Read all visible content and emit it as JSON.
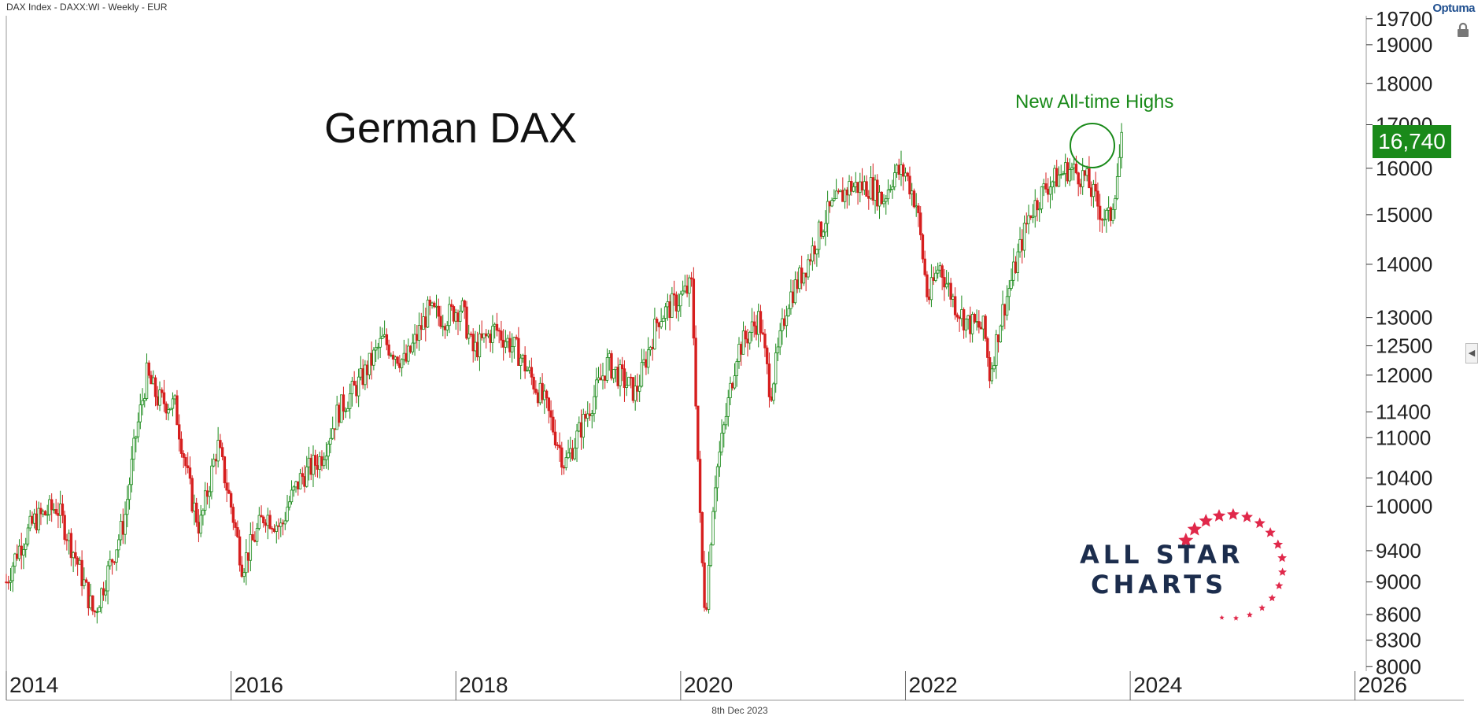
{
  "header": {
    "title": "DAX Index - DAXX:WI - Weekly - EUR",
    "brand": "Optuma"
  },
  "footer": {
    "date": "8th Dec 2023"
  },
  "colors": {
    "up": "#1a8a1a",
    "down": "#d61e1e",
    "annotation": "#1a8a1a",
    "logo_star": "#e0284a",
    "logo_text": "#1c2d4d"
  },
  "icons": {
    "lock": "lock-icon",
    "collapse": "chevron-left-icon"
  },
  "chart_data": {
    "type": "candlestick",
    "title": "German DAX",
    "xlabel": "",
    "ylabel": "",
    "y_scale": "log",
    "ylim": [
      7950,
      20000
    ],
    "xlim": [
      2014.0,
      2026.1
    ],
    "x_ticks": [
      "2014",
      "2016",
      "2018",
      "2020",
      "2022",
      "2024",
      "2026"
    ],
    "y_ticks": [
      19700,
      19000,
      18000,
      17000,
      16000,
      15000,
      14000,
      13000,
      12500,
      12000,
      11400,
      11000,
      10400,
      10000,
      9400,
      9000,
      8600,
      8300,
      8000
    ],
    "grid": false,
    "last_value_label": "16,740",
    "last_value": 16740,
    "annotation": "New All-time Highs",
    "price_path_anchors": [
      [
        2014.0,
        9000
      ],
      [
        2014.1,
        9400
      ],
      [
        2014.25,
        9800
      ],
      [
        2014.45,
        10000
      ],
      [
        2014.62,
        9300
      ],
      [
        2014.78,
        8600
      ],
      [
        2014.92,
        9200
      ],
      [
        2015.05,
        9800
      ],
      [
        2015.15,
        11000
      ],
      [
        2015.25,
        12000
      ],
      [
        2015.35,
        11600
      ],
      [
        2015.5,
        11500
      ],
      [
        2015.65,
        10100
      ],
      [
        2015.72,
        9700
      ],
      [
        2015.88,
        10900
      ],
      [
        2016.0,
        10000
      ],
      [
        2016.1,
        9200
      ],
      [
        2016.3,
        9900
      ],
      [
        2016.45,
        9700
      ],
      [
        2016.5,
        10000
      ],
      [
        2016.62,
        10400
      ],
      [
        2016.8,
        10700
      ],
      [
        2016.95,
        11400
      ],
      [
        2017.15,
        11900
      ],
      [
        2017.35,
        12600
      ],
      [
        2017.55,
        12200
      ],
      [
        2017.75,
        13100
      ],
      [
        2017.9,
        13000
      ],
      [
        2018.05,
        13200
      ],
      [
        2018.15,
        12400
      ],
      [
        2018.35,
        12800
      ],
      [
        2018.55,
        12400
      ],
      [
        2018.8,
        11500
      ],
      [
        2018.97,
        10600
      ],
      [
        2019.15,
        11300
      ],
      [
        2019.35,
        12200
      ],
      [
        2019.6,
        11700
      ],
      [
        2019.8,
        13000
      ],
      [
        2019.97,
        13300
      ],
      [
        2020.1,
        13600
      ],
      [
        2020.18,
        9500
      ],
      [
        2020.22,
        8600
      ],
      [
        2020.3,
        10300
      ],
      [
        2020.5,
        12400
      ],
      [
        2020.7,
        13000
      ],
      [
        2020.8,
        11700
      ],
      [
        2020.95,
        13300
      ],
      [
        2021.1,
        13900
      ],
      [
        2021.3,
        15000
      ],
      [
        2021.5,
        15600
      ],
      [
        2021.7,
        15600
      ],
      [
        2021.8,
        15300
      ],
      [
        2021.9,
        15900
      ],
      [
        2022.0,
        15900
      ],
      [
        2022.1,
        15200
      ],
      [
        2022.2,
        13300
      ],
      [
        2022.3,
        14000
      ],
      [
        2022.45,
        13200
      ],
      [
        2022.55,
        12900
      ],
      [
        2022.7,
        12800
      ],
      [
        2022.75,
        12000
      ],
      [
        2022.85,
        13000
      ],
      [
        2022.97,
        13900
      ],
      [
        2023.1,
        15000
      ],
      [
        2023.25,
        15600
      ],
      [
        2023.45,
        16000
      ],
      [
        2023.6,
        15800
      ],
      [
        2023.75,
        15000
      ],
      [
        2023.82,
        14900
      ],
      [
        2023.88,
        15800
      ],
      [
        2023.93,
        16700
      ]
    ]
  }
}
